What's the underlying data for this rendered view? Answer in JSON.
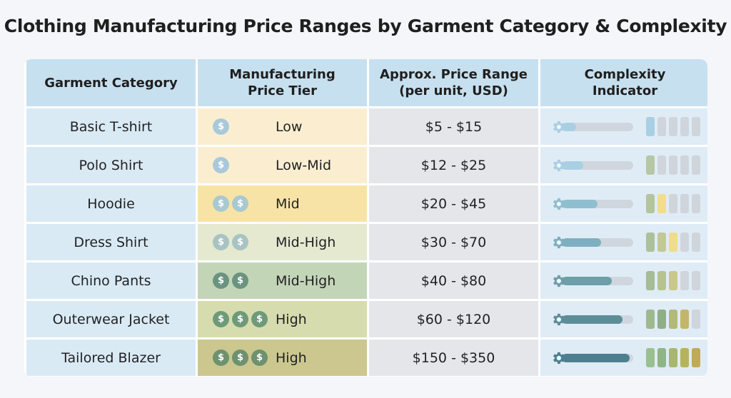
{
  "title": "Clothing Manufacturing Price Ranges by Garment Category & Complexity",
  "headers": {
    "category": "Garment Category",
    "tier_line1": "Manufacturing",
    "tier_line2": "Price Tier",
    "price_line1": "Approx. Price Range",
    "price_line2": "(per unit, USD)",
    "cx_line1": "Complexity",
    "cx_line2": "Indicator"
  },
  "coin_symbol": "$",
  "icons": {
    "coin": "dollar-coin-icon",
    "gear": "gear-icon"
  },
  "rows": [
    {
      "category": "Basic T-shirt",
      "tier": "Low",
      "coins": 1,
      "coin_color": "#a9c9d9",
      "tier_bg": "#fbeed0",
      "price": "$5 - $15",
      "complexity": 0.2,
      "bar_color": "#a9cfe3",
      "seg_colors": [
        "#a9cfe3"
      ]
    },
    {
      "category": "Polo Shirt",
      "tier": "Low-Mid",
      "coins": 1,
      "coin_color": "#a9c9d9",
      "tier_bg": "#fbeed0",
      "price": "$12 - $25",
      "complexity": 0.3,
      "bar_color": "#a9cfe3",
      "seg_colors": [
        "#b6c7a5"
      ]
    },
    {
      "category": "Hoodie",
      "tier": "Mid",
      "coins": 2,
      "coin_color": "#a9c9d0",
      "tier_bg": "#f8e3a6",
      "price": "$20 - $45",
      "complexity": 0.5,
      "bar_color": "#8fbfcf",
      "seg_colors": [
        "#b4c49c",
        "#f3dc8a"
      ]
    },
    {
      "category": "Dress Shirt",
      "tier": "Mid-High",
      "coins": 2,
      "coin_color": "#a9c3c2",
      "tier_bg": "#e4e9d0",
      "price": "$30 - $70",
      "complexity": 0.55,
      "bar_color": "#7eafc0",
      "seg_colors": [
        "#adc09a",
        "#c3c995",
        "#f0dc89"
      ]
    },
    {
      "category": "Chino Pants",
      "tier": "Mid-High",
      "coins": 2,
      "coin_color": "#6b9480",
      "tier_bg": "#c3d5b7",
      "price": "$40 - $80",
      "complexity": 0.7,
      "bar_color": "#6c9fa8",
      "seg_colors": [
        "#a5bc94",
        "#b7c28f",
        "#c9c88a"
      ]
    },
    {
      "category": "Outerwear Jacket",
      "tier": "High",
      "coins": 3,
      "coin_color": "#6f9a79",
      "tier_bg": "#d7dcae",
      "price": "$60 - $120",
      "complexity": 0.85,
      "bar_color": "#5d8d97",
      "seg_colors": [
        "#9fb98e",
        "#8fae84",
        "#b3b977",
        "#c4b56d"
      ]
    },
    {
      "category": "Tailored Blazer",
      "tier": "High",
      "coins": 3,
      "coin_color": "#6e916f",
      "tier_bg": "#cbc78f",
      "price": "$150 - $350",
      "complexity": 0.95,
      "bar_color": "#4e7f8f",
      "seg_colors": [
        "#9ac08f",
        "#8db684",
        "#a7b86e",
        "#b5b35e",
        "#c1a95a"
      ]
    }
  ]
}
